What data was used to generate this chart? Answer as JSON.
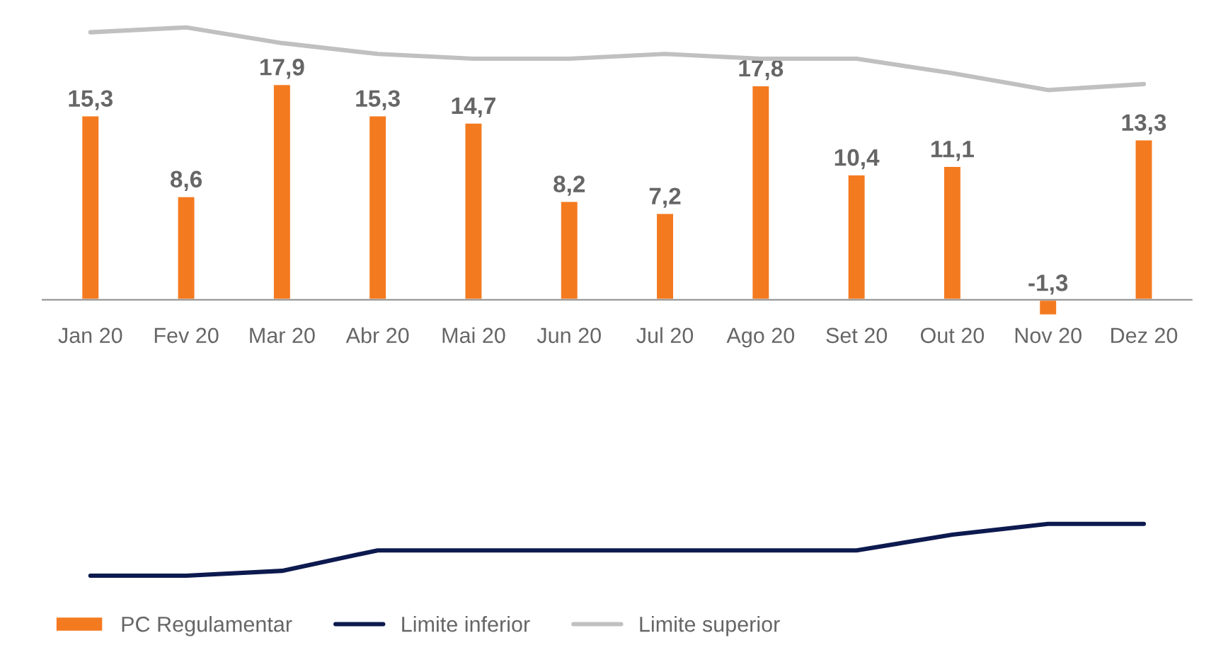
{
  "chart_data": {
    "type": "bar",
    "categories": [
      "Jan 20",
      "Fev 20",
      "Mar 20",
      "Abr 20",
      "Mai 20",
      "Jun 20",
      "Jul 20",
      "Ago 20",
      "Set 20",
      "Out 20",
      "Nov 20",
      "Dez 20"
    ],
    "series": [
      {
        "name": "PC Regulamentar",
        "color": "#f47a20",
        "values": [
          15.3,
          8.6,
          17.9,
          15.3,
          14.7,
          8.2,
          7.2,
          17.8,
          10.4,
          11.1,
          -1.3,
          13.3
        ],
        "value_labels": [
          "15,3",
          "8,6",
          "17,9",
          "15,3",
          "14,7",
          "8,2",
          "7,2",
          "17,8",
          "10,4",
          "11,1",
          "-1,3",
          "13,3"
        ]
      },
      {
        "name": "Limite inferior",
        "type": "line",
        "color": "#0d1a4f",
        "values": [
          -22.9,
          -22.9,
          -22.5,
          -20.8,
          -20.8,
          -20.8,
          -20.8,
          -20.8,
          -20.8,
          -19.5,
          -18.6,
          -18.6
        ]
      },
      {
        "name": "Limite superior",
        "type": "line",
        "color": "#c0c0c0",
        "values": [
          22.2,
          22.6,
          21.3,
          20.4,
          20.0,
          20.0,
          20.4,
          20.0,
          20.0,
          18.8,
          17.4,
          17.9
        ]
      }
    ],
    "tick_labels": "x",
    "grid": false,
    "legend": "bottom left",
    "marker": "none",
    "line_style": "solid"
  }
}
